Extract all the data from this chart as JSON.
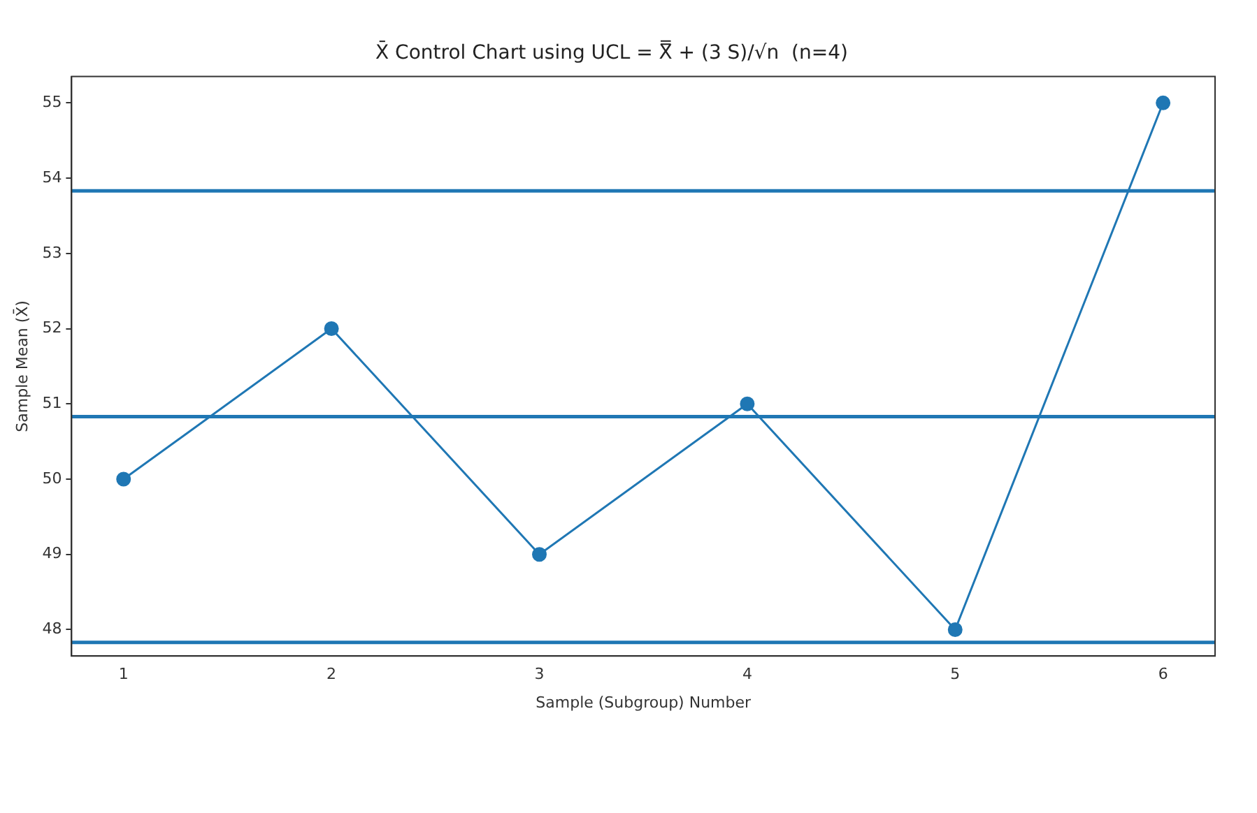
{
  "chart_data": {
    "type": "line",
    "title": "X̄ Control Chart using UCL = X̿ + (3 S)/√n  (n=4)",
    "xlabel": "Sample (Subgroup) Number",
    "ylabel": "Sample Mean (X̄)",
    "x": [
      1,
      2,
      3,
      4,
      5,
      6
    ],
    "series": [
      {
        "color": "#1f77b4",
        "values": [
          50,
          52,
          49,
          51,
          48,
          55
        ]
      }
    ],
    "marker": "circle",
    "line_style": "solid",
    "grid": false,
    "legend": false,
    "xlim": [
      0.75,
      6.25
    ],
    "xticks": [
      1,
      2,
      3,
      4,
      5,
      6
    ],
    "ylim": [
      47.65,
      55.35
    ],
    "yticks": [
      48,
      49,
      50,
      51,
      52,
      53,
      54,
      55
    ],
    "ref_lines": [
      {
        "axis": "y",
        "value": 53.83,
        "color": "#1f77b4"
      },
      {
        "axis": "y",
        "value": 50.83,
        "color": "#1f77b4"
      },
      {
        "axis": "y",
        "value": 47.83,
        "color": "#1f77b4"
      }
    ]
  }
}
